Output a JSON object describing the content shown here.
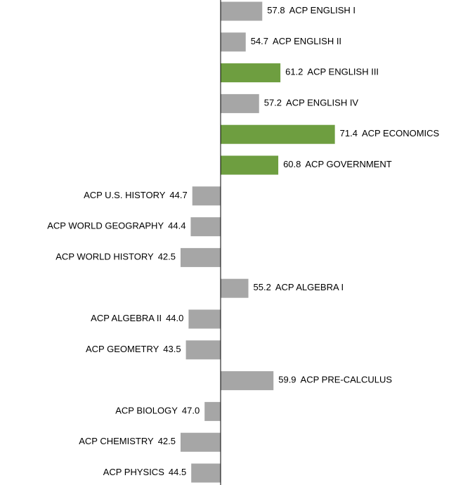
{
  "chart_data": {
    "type": "diverging-bar",
    "categories": [
      "ACP ENGLISH I",
      "ACP ENGLISH II",
      "ACP ENGLISH III",
      "ACP ENGLISH IV",
      "ACP ECONOMICS",
      "ACP GOVERNMENT",
      "ACP U.S. HISTORY",
      "ACP WORLD GEOGRAPHY",
      "ACP WORLD HISTORY",
      "ACP ALGEBRA I",
      "ACP ALGEBRA II",
      "ACP GEOMETRY",
      "ACP PRE-CALCULUS",
      "ACP BIOLOGY",
      "ACP CHEMISTRY",
      "ACP PHYSICS"
    ],
    "values": [
      57.8,
      54.7,
      61.2,
      57.2,
      71.4,
      60.8,
      44.7,
      44.4,
      42.5,
      55.2,
      44.0,
      43.5,
      59.9,
      47.0,
      42.5,
      44.5
    ],
    "value_labels": [
      "57.8",
      "54.7",
      "61.2",
      "57.2",
      "71.4",
      "60.8",
      "44.7",
      "44.4",
      "42.5",
      "55.2",
      "44.0",
      "43.5",
      "59.9",
      "47.0",
      "42.5",
      "44.5"
    ],
    "colors": [
      "#a6a6a6",
      "#a6a6a6",
      "#6e9e40",
      "#a6a6a6",
      "#6e9e40",
      "#6e9e40",
      "#a6a6a6",
      "#a6a6a6",
      "#a6a6a6",
      "#a6a6a6",
      "#a6a6a6",
      "#a6a6a6",
      "#a6a6a6",
      "#a6a6a6",
      "#a6a6a6",
      "#a6a6a6"
    ],
    "baseline": 50,
    "xlim": [
      10,
      90
    ]
  }
}
